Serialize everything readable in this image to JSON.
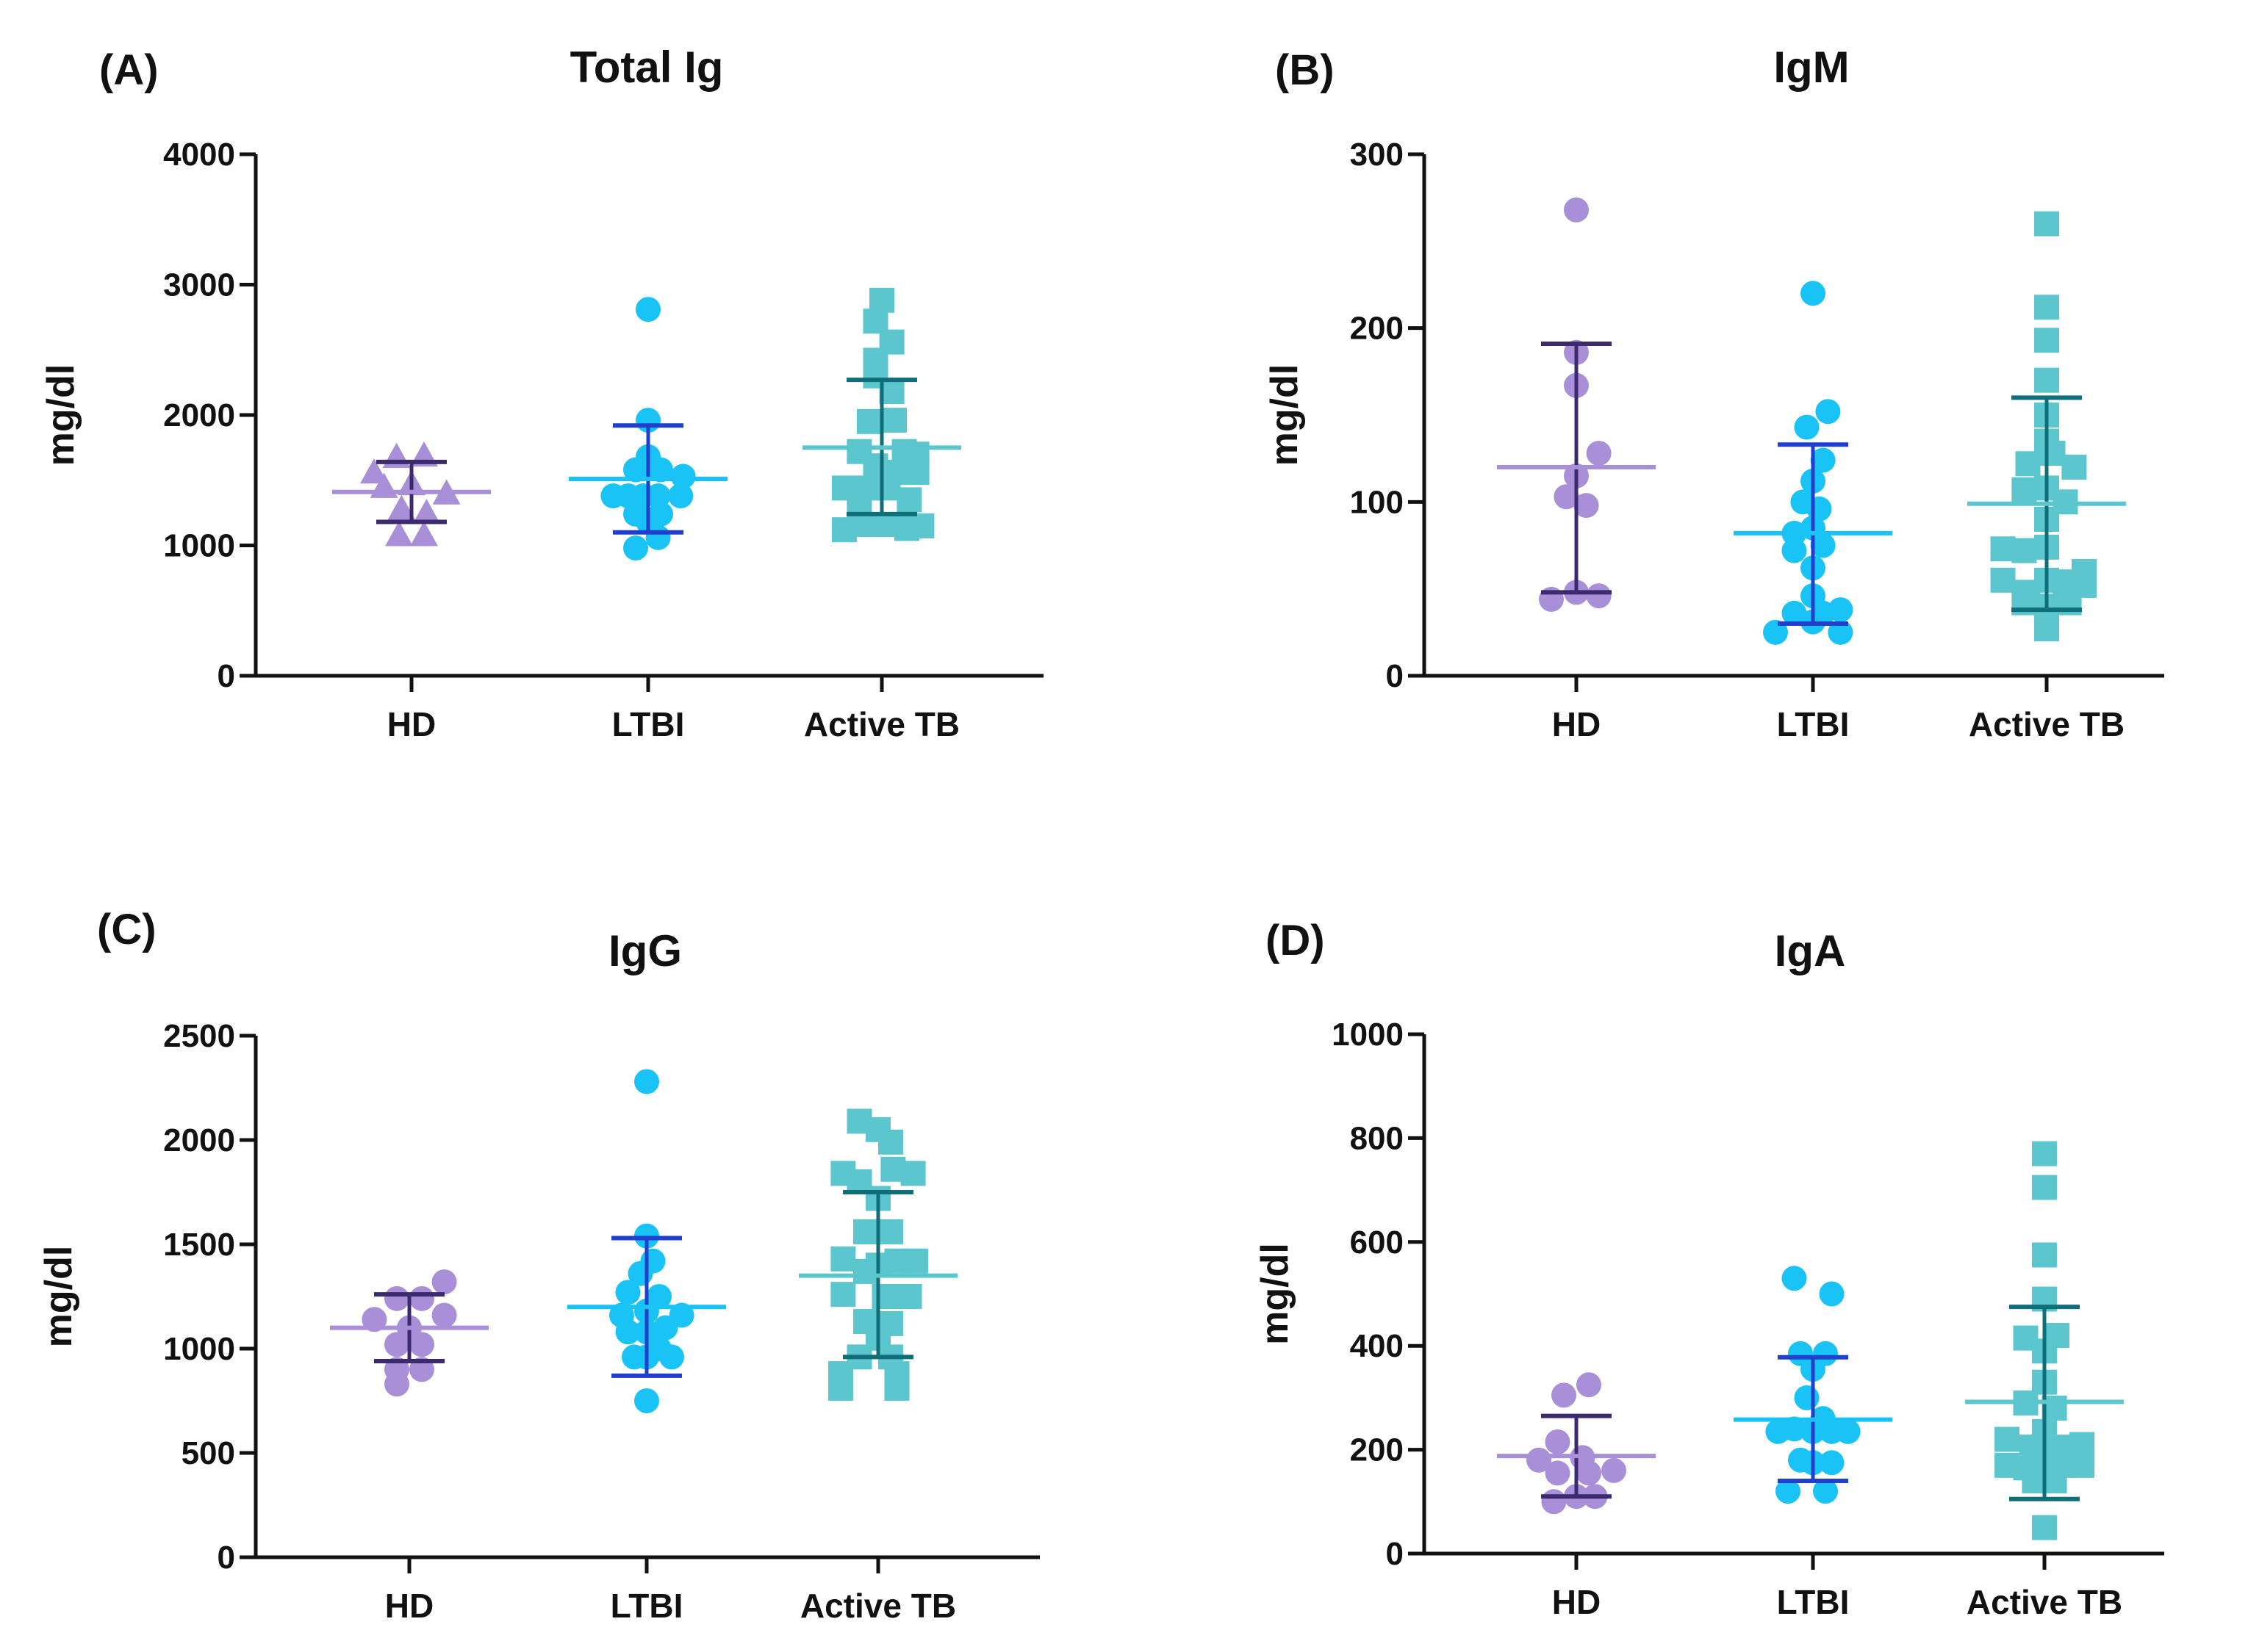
{
  "figure": {
    "background": "#ffffff"
  },
  "chart_data": [
    {
      "panel": "(A)",
      "title": "Total Ig",
      "type": "scatter",
      "ylabel": "mg/dl",
      "ylim": [
        0,
        4000
      ],
      "yticks": [
        "0",
        "1000",
        "2000",
        "3000",
        "4000"
      ],
      "categories": [
        "HD",
        "LTBI",
        "Active TB"
      ],
      "groups": [
        {
          "name": "HD",
          "marker": "triangle",
          "color": "#a88fd8",
          "barColor": "#3b2a6e",
          "meanColor": "#a88fd8",
          "mean": 1410,
          "sd_low": 1180,
          "sd_high": 1640,
          "points": [
            [
              -0.3,
              1560
            ],
            [
              -0.12,
              1680
            ],
            [
              0.1,
              1690
            ],
            [
              -0.22,
              1450
            ],
            [
              0.0,
              1470
            ],
            [
              0.28,
              1400
            ],
            [
              -0.08,
              1280
            ],
            [
              0.12,
              1250
            ],
            [
              -0.1,
              1080
            ],
            [
              0.1,
              1080
            ]
          ]
        },
        {
          "name": "LTBI",
          "marker": "circle",
          "color": "#19c3f5",
          "barColor": "#1f3fcc",
          "meanColor": "#19c3f5",
          "mean": 1510,
          "sd_low": 1100,
          "sd_high": 1920,
          "points": [
            [
              0.0,
              2810
            ],
            [
              0.0,
              1960
            ],
            [
              0.0,
              1680
            ],
            [
              -0.1,
              1580
            ],
            [
              0.1,
              1580
            ],
            [
              0.28,
              1530
            ],
            [
              -0.28,
              1380
            ],
            [
              -0.16,
              1380
            ],
            [
              -0.04,
              1380
            ],
            [
              0.08,
              1380
            ],
            [
              0.26,
              1380
            ],
            [
              -0.1,
              1240
            ],
            [
              0.1,
              1240
            ],
            [
              0.0,
              1180
            ],
            [
              -0.1,
              980
            ],
            [
              0.08,
              1060
            ]
          ]
        },
        {
          "name": "Active TB",
          "marker": "square",
          "color": "#5cc6cf",
          "barColor": "#0f6e78",
          "meanColor": "#5cc6cf",
          "mean": 1750,
          "sd_low": 1240,
          "sd_high": 2270,
          "points": [
            [
              0.0,
              2880
            ],
            [
              -0.05,
              2720
            ],
            [
              0.08,
              2560
            ],
            [
              -0.05,
              2420
            ],
            [
              -0.05,
              2300
            ],
            [
              0.08,
              2180
            ],
            [
              0.1,
              1960
            ],
            [
              -0.1,
              1950
            ],
            [
              0.18,
              1720
            ],
            [
              -0.18,
              1720
            ],
            [
              -0.05,
              1610
            ],
            [
              0.28,
              1700
            ],
            [
              0.28,
              1560
            ],
            [
              0.15,
              1560
            ],
            [
              -0.3,
              1440
            ],
            [
              -0.1,
              1440
            ],
            [
              0.05,
              1440
            ],
            [
              -0.18,
              1280
            ],
            [
              0.22,
              1350
            ],
            [
              -0.3,
              1120
            ],
            [
              -0.1,
              1160
            ],
            [
              0.05,
              1160
            ],
            [
              0.2,
              1130
            ],
            [
              0.32,
              1150
            ]
          ]
        }
      ]
    },
    {
      "panel": "(B)",
      "title": "IgM",
      "type": "scatter",
      "ylabel": "mg/dl",
      "ylim": [
        0,
        300
      ],
      "yticks": [
        "0",
        "100",
        "200",
        "300"
      ],
      "categories": [
        "HD",
        "LTBI",
        "Active TB"
      ],
      "groups": [
        {
          "name": "HD",
          "marker": "circle",
          "color": "#a88fd8",
          "barColor": "#3b2a6e",
          "meanColor": "#a88fd8",
          "mean": 120,
          "sd_low": 48,
          "sd_high": 191,
          "points": [
            [
              0.0,
              268
            ],
            [
              0.0,
              186
            ],
            [
              0.0,
              167
            ],
            [
              0.18,
              128
            ],
            [
              0.0,
              115
            ],
            [
              -0.08,
              103
            ],
            [
              0.08,
              98
            ],
            [
              -0.2,
              44
            ],
            [
              0.0,
              48
            ],
            [
              0.18,
              46
            ]
          ]
        },
        {
          "name": "LTBI",
          "marker": "circle",
          "color": "#19c3f5",
          "barColor": "#1f3fcc",
          "meanColor": "#19c3f5",
          "mean": 82,
          "sd_low": 30,
          "sd_high": 133,
          "points": [
            [
              0.0,
              220
            ],
            [
              0.12,
              152
            ],
            [
              -0.05,
              143
            ],
            [
              0.08,
              124
            ],
            [
              0.0,
              112
            ],
            [
              -0.08,
              100
            ],
            [
              0.05,
              96
            ],
            [
              -0.15,
              82
            ],
            [
              0.0,
              85
            ],
            [
              -0.15,
              72
            ],
            [
              0.08,
              75
            ],
            [
              0.0,
              62
            ],
            [
              0.0,
              46
            ],
            [
              -0.15,
              36
            ],
            [
              0.08,
              36
            ],
            [
              0.22,
              38
            ],
            [
              -0.3,
              25
            ],
            [
              0.0,
              31
            ],
            [
              0.22,
              25
            ]
          ]
        },
        {
          "name": "Active TB",
          "marker": "square",
          "color": "#5cc6cf",
          "barColor": "#0f6e78",
          "meanColor": "#5cc6cf",
          "mean": 99,
          "sd_low": 38,
          "sd_high": 160,
          "points": [
            [
              0.0,
              260
            ],
            [
              0.0,
              212
            ],
            [
              0.0,
              193
            ],
            [
              0.0,
              170
            ],
            [
              0.0,
              150
            ],
            [
              0.0,
              135
            ],
            [
              -0.15,
              122
            ],
            [
              0.05,
              128
            ],
            [
              0.22,
              120
            ],
            [
              0.0,
              108
            ],
            [
              -0.18,
              107
            ],
            [
              0.15,
              100
            ],
            [
              0.0,
              90
            ],
            [
              -0.35,
              73
            ],
            [
              -0.18,
              72
            ],
            [
              0.0,
              74
            ],
            [
              -0.35,
              55
            ],
            [
              -0.15,
              48
            ],
            [
              0.0,
              55
            ],
            [
              0.15,
              54
            ],
            [
              0.3,
              60
            ],
            [
              0.0,
              40
            ],
            [
              -0.18,
              42
            ],
            [
              0.18,
              42
            ],
            [
              0.3,
              52
            ],
            [
              0.0,
              27
            ]
          ]
        }
      ]
    },
    {
      "panel": "(C)",
      "title": "IgG",
      "type": "scatter",
      "ylabel": "mg/dl",
      "ylim": [
        0,
        2500
      ],
      "yticks": [
        "0",
        "500",
        "1000",
        "1500",
        "2000",
        "2500"
      ],
      "categories": [
        "HD",
        "LTBI",
        "Active TB"
      ],
      "groups": [
        {
          "name": "HD",
          "marker": "circle",
          "color": "#a88fd8",
          "barColor": "#3b2a6e",
          "meanColor": "#a88fd8",
          "mean": 1100,
          "sd_low": 940,
          "sd_high": 1260,
          "points": [
            [
              0.28,
              1320
            ],
            [
              -0.1,
              1240
            ],
            [
              0.1,
              1240
            ],
            [
              0.28,
              1160
            ],
            [
              -0.28,
              1140
            ],
            [
              0.0,
              1100
            ],
            [
              -0.1,
              1020
            ],
            [
              0.1,
              1020
            ],
            [
              -0.1,
              900
            ],
            [
              0.1,
              900
            ],
            [
              -0.1,
              830
            ]
          ]
        },
        {
          "name": "LTBI",
          "marker": "circle",
          "color": "#19c3f5",
          "barColor": "#1f3fcc",
          "meanColor": "#19c3f5",
          "mean": 1200,
          "sd_low": 870,
          "sd_high": 1530,
          "points": [
            [
              0.0,
              2280
            ],
            [
              0.0,
              1540
            ],
            [
              0.05,
              1420
            ],
            [
              -0.05,
              1360
            ],
            [
              -0.15,
              1270
            ],
            [
              0.1,
              1250
            ],
            [
              0.28,
              1160
            ],
            [
              -0.2,
              1160
            ],
            [
              0.0,
              1180
            ],
            [
              0.15,
              1100
            ],
            [
              -0.15,
              1080
            ],
            [
              0.0,
              1080
            ],
            [
              0.1,
              1000
            ],
            [
              -0.1,
              960
            ],
            [
              0.0,
              960
            ],
            [
              0.2,
              960
            ],
            [
              0.0,
              750
            ]
          ]
        },
        {
          "name": "Active TB",
          "marker": "square",
          "color": "#5cc6cf",
          "barColor": "#0f6e78",
          "meanColor": "#5cc6cf",
          "mean": 1350,
          "sd_low": 960,
          "sd_high": 1750,
          "points": [
            [
              -0.15,
              2090
            ],
            [
              0.0,
              2050
            ],
            [
              0.1,
              1990
            ],
            [
              -0.28,
              1840
            ],
            [
              -0.15,
              1800
            ],
            [
              0.12,
              1860
            ],
            [
              0.28,
              1840
            ],
            [
              0.0,
              1720
            ],
            [
              -0.1,
              1560
            ],
            [
              0.1,
              1560
            ],
            [
              -0.28,
              1430
            ],
            [
              0.0,
              1400
            ],
            [
              0.15,
              1420
            ],
            [
              0.3,
              1420
            ],
            [
              -0.1,
              1370
            ],
            [
              -0.28,
              1260
            ],
            [
              0.05,
              1250
            ],
            [
              0.25,
              1250
            ],
            [
              -0.1,
              1130
            ],
            [
              0.1,
              1120
            ],
            [
              0.0,
              1050
            ],
            [
              -0.15,
              960
            ],
            [
              0.1,
              960
            ],
            [
              -0.3,
              880
            ],
            [
              0.15,
              880
            ],
            [
              -0.3,
              810
            ],
            [
              0.15,
              810
            ]
          ]
        }
      ]
    },
    {
      "panel": "(D)",
      "title": "IgA",
      "type": "scatter",
      "ylabel": "mg/dl",
      "ylim": [
        0,
        1000
      ],
      "yticks": [
        "0",
        "200",
        "400",
        "600",
        "800",
        "1000"
      ],
      "categories": [
        "HD",
        "LTBI",
        "Active TB"
      ],
      "groups": [
        {
          "name": "HD",
          "marker": "circle",
          "color": "#a88fd8",
          "barColor": "#3b2a6e",
          "meanColor": "#a88fd8",
          "mean": 188,
          "sd_low": 110,
          "sd_high": 265,
          "points": [
            [
              0.1,
              325
            ],
            [
              -0.1,
              305
            ],
            [
              -0.15,
              215
            ],
            [
              -0.3,
              180
            ],
            [
              0.05,
              185
            ],
            [
              0.3,
              160
            ],
            [
              -0.15,
              155
            ],
            [
              0.1,
              155
            ],
            [
              -0.18,
              100
            ],
            [
              0.0,
              110
            ],
            [
              0.15,
              110
            ]
          ]
        },
        {
          "name": "LTBI",
          "marker": "circle",
          "color": "#19c3f5",
          "barColor": "#1f3fcc",
          "meanColor": "#19c3f5",
          "mean": 258,
          "sd_low": 140,
          "sd_high": 378,
          "points": [
            [
              -0.15,
              530
            ],
            [
              0.15,
              500
            ],
            [
              -0.1,
              385
            ],
            [
              0.1,
              385
            ],
            [
              0.0,
              355
            ],
            [
              -0.05,
              300
            ],
            [
              0.08,
              260
            ],
            [
              -0.28,
              235
            ],
            [
              -0.15,
              240
            ],
            [
              0.0,
              235
            ],
            [
              0.15,
              235
            ],
            [
              0.28,
              235
            ],
            [
              -0.1,
              180
            ],
            [
              0.0,
              175
            ],
            [
              0.15,
              175
            ],
            [
              -0.2,
              120
            ],
            [
              0.1,
              120
            ]
          ]
        },
        {
          "name": "Active TB",
          "marker": "square",
          "color": "#5cc6cf",
          "barColor": "#0f6e78",
          "meanColor": "#5cc6cf",
          "mean": 292,
          "sd_low": 105,
          "sd_high": 475,
          "points": [
            [
              0.0,
              770
            ],
            [
              0.0,
              705
            ],
            [
              0.0,
              575
            ],
            [
              0.0,
              490
            ],
            [
              -0.15,
              415
            ],
            [
              0.1,
              420
            ],
            [
              0.0,
              390
            ],
            [
              0.0,
              330
            ],
            [
              -0.15,
              290
            ],
            [
              0.08,
              280
            ],
            [
              0.0,
              235
            ],
            [
              -0.3,
              220
            ],
            [
              0.3,
              210
            ],
            [
              -0.1,
              205
            ],
            [
              0.1,
              205
            ],
            [
              -0.3,
              170
            ],
            [
              -0.15,
              165
            ],
            [
              0.0,
              170
            ],
            [
              0.15,
              170
            ],
            [
              0.3,
              170
            ],
            [
              -0.08,
              140
            ],
            [
              0.08,
              140
            ],
            [
              0.0,
              50
            ]
          ]
        }
      ]
    }
  ]
}
